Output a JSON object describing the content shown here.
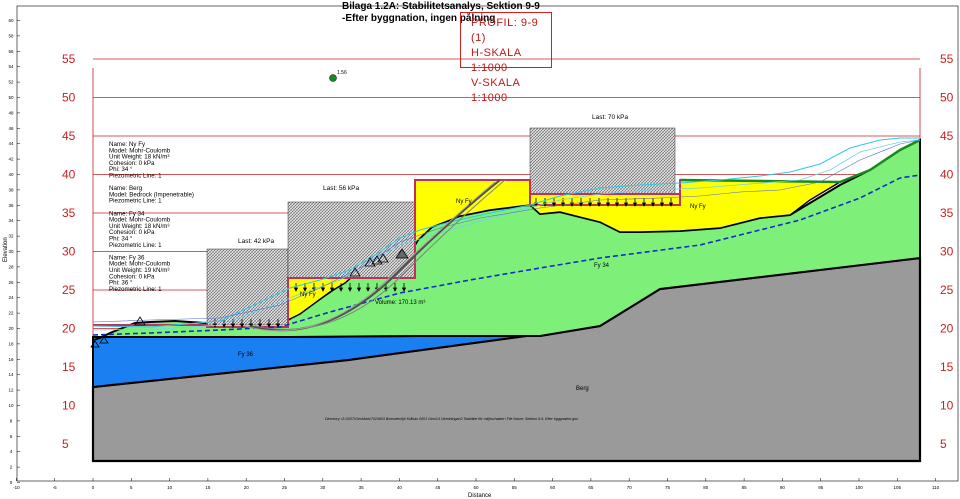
{
  "header": {
    "title": "Bilaga 1.2A: Stabilitetsanalys, Sektion 9-9",
    "subtitle": "-Efter byggnation, ingen pålning"
  },
  "stamp": {
    "line1": "PROFIL: 9-9 (1)",
    "line2": "H-SKALA 1:1000",
    "line3": "V-SKALA 1:1000"
  },
  "axes": {
    "xlabel": "Distance",
    "ylabel": "Elevation",
    "x_ticks": [
      "-10",
      "-5",
      "0",
      "5",
      "10",
      "15",
      "20",
      "25",
      "30",
      "35",
      "40",
      "45",
      "50",
      "55",
      "60",
      "65",
      "70",
      "75",
      "80",
      "85",
      "90",
      "95",
      "100",
      "105",
      "110"
    ],
    "y_ticks": [
      "0",
      "2",
      "4",
      "6",
      "8",
      "10",
      "12",
      "14",
      "16",
      "18",
      "20",
      "22",
      "24",
      "26",
      "28",
      "30",
      "32",
      "34",
      "36",
      "38",
      "40",
      "42",
      "44",
      "46",
      "48",
      "50",
      "52",
      "54",
      "56",
      "58",
      "60",
      "62"
    ],
    "red_labels": [
      "55",
      "50",
      "45",
      "40",
      "35",
      "30",
      "25",
      "20",
      "15",
      "10",
      "5"
    ]
  },
  "factor_of_safety": "1.56",
  "loads": {
    "load_42": "Last: 42 kPa",
    "load_56": "Last: 56 kPa",
    "load_70": "Last: 70 kPa"
  },
  "materials": [
    {
      "label": "Name: Ny Fy",
      "lines": [
        "Model: Mohr-Coulomb",
        "Unit Weight: 18 kN/m³",
        "Cohesion: 0 kPa",
        "Phi: 34 °",
        "Piezometric Line: 1"
      ]
    },
    {
      "label": "Name: Berg",
      "lines": [
        "Model: Bedrock (Impenetrable)",
        "Piezometric Line: 1"
      ]
    },
    {
      "label": "Name: Fy 34",
      "lines": [
        "Model: Mohr-Coulomb",
        "Unit Weight: 18 kN/m³",
        "Cohesion: 0 kPa",
        "Phi: 34 °",
        "Piezometric Line: 1"
      ]
    },
    {
      "label": "Name: Fy 36",
      "lines": [
        "Model: Mohr-Coulomb",
        "Unit Weight: 19 kN/m³",
        "Cohesion: 0 kPa",
        "Phi: 36 °",
        "Piezometric Line: 1"
      ]
    }
  ],
  "region_labels": {
    "ny_fy_left": "Ny Fy",
    "ny_fy_mid": "Ny Fy",
    "ny_fy_right": "Ny Fy",
    "fy34": "Fy 34",
    "fy36": "Fy 36",
    "berg": "Berg"
  },
  "volume": "Volume: 170.13 m³",
  "directory": "Directory: G:\\2007\\GeoMark\\7024603 Boendemiljö Kråkan 0001 Geo\\14 Utredningar\\2 Stabilitet för miljöschakter\\ File Name: Sektion 9-9, Efter byggnation.gsz",
  "colors": {
    "fy34": "#7ef07a",
    "fy36": "#1a7ff0",
    "berg": "#9a9a9a",
    "ny_fy": "#ffff00",
    "grid_red": "#c82020",
    "piezometric": "#1030c0"
  }
}
